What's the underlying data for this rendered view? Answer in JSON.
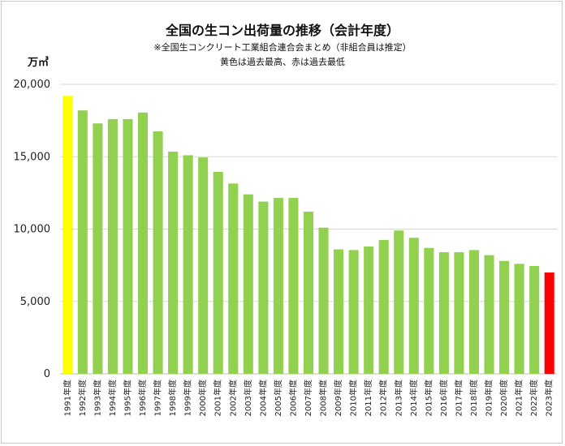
{
  "chart_data": {
    "type": "bar",
    "title": "全国の生コン出荷量の推移（会計年度）",
    "subtitle": "※全国生コンクリート工業組合連合会まとめ（非組合員は推定）",
    "note": "黄色は過去最高、赤は過去最低",
    "ylabel": "万㎥",
    "xlabel": "",
    "ylim": [
      0,
      20000
    ],
    "yticks": [
      "0",
      "5,000",
      "10,000",
      "15,000",
      "20,000"
    ],
    "grid": true,
    "categories": [
      "1991年度",
      "1992年度",
      "1993年度",
      "1994年度",
      "1995年度",
      "1996年度",
      "1997年度",
      "1998年度",
      "1999年度",
      "2000年度",
      "2001年度",
      "2002年度",
      "2003年度",
      "2004年度",
      "2005年度",
      "2006年度",
      "2007年度",
      "2008年度",
      "2009年度",
      "2010年度",
      "2011年度",
      "2012年度",
      "2013年度",
      "2014年度",
      "2015年度",
      "2016年度",
      "2017年度",
      "2018年度",
      "2019年度",
      "2020年度",
      "2021年度",
      "2022年度",
      "2023年度"
    ],
    "values": [
      19200,
      18200,
      17300,
      17600,
      17600,
      18050,
      16750,
      15350,
      15100,
      14950,
      13950,
      13150,
      12400,
      11900,
      12150,
      12150,
      11200,
      10100,
      8600,
      8550,
      8800,
      9250,
      9900,
      9400,
      8700,
      8400,
      8400,
      8550,
      8200,
      7800,
      7600,
      7450,
      7000
    ],
    "colors": {
      "default": "#92d050",
      "highest": "#ffff00",
      "lowest": "#ff0000"
    },
    "highlight": {
      "highest_index": 0,
      "lowest_index": 32
    }
  }
}
